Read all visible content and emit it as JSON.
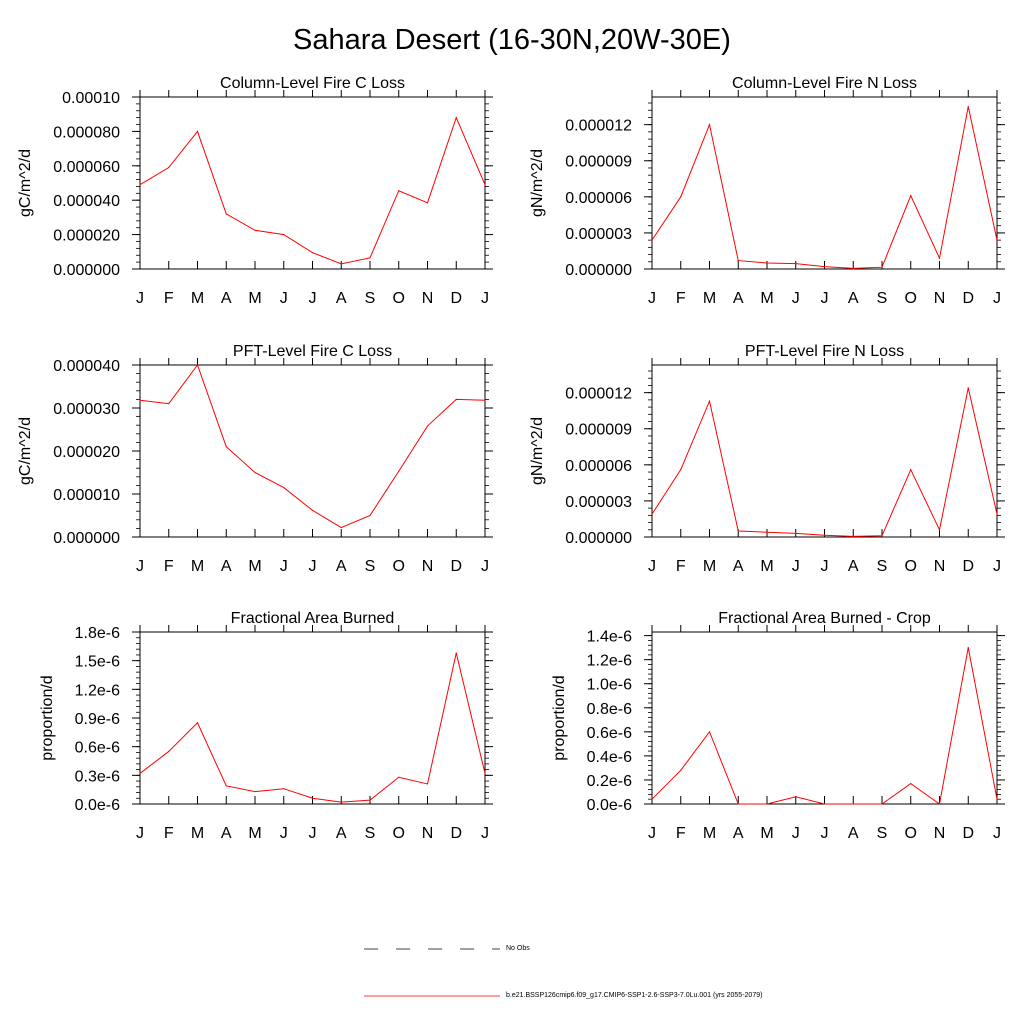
{
  "page": {
    "title": "Sahara Desert (16-30N,20W-30E)"
  },
  "colors": {
    "series": "#ff0000",
    "axis": "#000000",
    "background": "#ffffff"
  },
  "legend": {
    "obs_label": "No Obs",
    "model_label": "b.e21.BSSP126cmip6.f09_g17.CMIP6-SSP1-2.6-SSP3-7.0Lu.001 (yrs 2055-2079)"
  },
  "chart_data": [
    {
      "type": "line",
      "title": "Column-Level Fire C Loss",
      "xlabel": "",
      "ylabel": "gC/m^2/d",
      "categories": [
        "J",
        "F",
        "M",
        "A",
        "M",
        "J",
        "J",
        "A",
        "S",
        "O",
        "N",
        "D",
        "J"
      ],
      "ylim": [
        0,
        0.0001
      ],
      "yticks": [
        0,
        2e-05,
        4e-05,
        6e-05,
        8e-05,
        0.0001
      ],
      "ytick_labels": [
        "0.000000",
        "0.000020",
        "0.000040",
        "0.000060",
        "0.000080",
        "0.00010"
      ],
      "series": [
        {
          "values": [
            4.9e-05,
            5.9e-05,
            8e-05,
            3.2e-05,
            2.25e-05,
            2e-05,
            9.5e-06,
            3e-06,
            6.5e-06,
            4.55e-05,
            3.85e-05,
            8.8e-05,
            4.9e-05
          ]
        }
      ]
    },
    {
      "type": "line",
      "title": "Column-Level Fire N Loss",
      "xlabel": "",
      "ylabel": "gN/m^2/d",
      "categories": [
        "J",
        "F",
        "M",
        "A",
        "M",
        "J",
        "J",
        "A",
        "S",
        "O",
        "N",
        "D",
        "J"
      ],
      "ylim": [
        0,
        1.43e-05
      ],
      "yticks": [
        0,
        3e-06,
        6e-06,
        9e-06,
        1.2e-05
      ],
      "ytick_labels": [
        "0.000000",
        "0.000003",
        "0.000006",
        "0.000009",
        "0.000012"
      ],
      "series": [
        {
          "values": [
            2.4e-06,
            6e-06,
            1.2e-05,
            7e-07,
            5e-07,
            4.5e-07,
            2e-07,
            5e-08,
            1.5e-07,
            6.1e-06,
            9e-07,
            1.35e-05,
            2.4e-06
          ]
        }
      ]
    },
    {
      "type": "line",
      "title": "PFT-Level Fire C Loss",
      "xlabel": "",
      "ylabel": "gC/m^2/d",
      "categories": [
        "J",
        "F",
        "M",
        "A",
        "M",
        "J",
        "J",
        "A",
        "S",
        "O",
        "N",
        "D",
        "J"
      ],
      "ylim": [
        0,
        4e-05
      ],
      "yticks": [
        0,
        1e-05,
        2e-05,
        3e-05,
        4e-05
      ],
      "ytick_labels": [
        "0.000000",
        "0.000010",
        "0.000020",
        "0.000030",
        "0.000040"
      ],
      "series": [
        {
          "values": [
            3.18e-05,
            3.1e-05,
            4e-05,
            2.1e-05,
            1.5e-05,
            1.15e-05,
            6.2e-06,
            2.2e-06,
            5e-06,
            1.53e-05,
            2.58e-05,
            3.2e-05,
            3.18e-05
          ]
        }
      ]
    },
    {
      "type": "line",
      "title": "PFT-Level Fire N Loss",
      "xlabel": "",
      "ylabel": "gN/m^2/d",
      "categories": [
        "J",
        "F",
        "M",
        "A",
        "M",
        "J",
        "J",
        "A",
        "S",
        "O",
        "N",
        "D",
        "J"
      ],
      "ylim": [
        0,
        1.43e-05
      ],
      "yticks": [
        0,
        3e-06,
        6e-06,
        9e-06,
        1.2e-05
      ],
      "ytick_labels": [
        "0.000000",
        "0.000003",
        "0.000006",
        "0.000009",
        "0.000012"
      ],
      "series": [
        {
          "values": [
            1.9e-06,
            5.6e-06,
            1.13e-05,
            5e-07,
            4e-07,
            3e-07,
            1.5e-07,
            5e-08,
            1e-07,
            5.6e-06,
            6e-07,
            1.24e-05,
            1.9e-06
          ]
        }
      ]
    },
    {
      "type": "line",
      "title": "Fractional Area Burned",
      "xlabel": "",
      "ylabel": "proportion/d",
      "categories": [
        "J",
        "F",
        "M",
        "A",
        "M",
        "J",
        "J",
        "A",
        "S",
        "O",
        "N",
        "D",
        "J"
      ],
      "ylim": [
        0,
        1.8e-06
      ],
      "yticks": [
        0,
        3e-07,
        6e-07,
        9e-07,
        1.2e-06,
        1.5e-06,
        1.8e-06
      ],
      "ytick_labels": [
        "0.0e-6",
        "0.3e-6",
        "0.6e-6",
        "0.9e-6",
        "1.2e-6",
        "1.5e-6",
        "1.8e-6"
      ],
      "series": [
        {
          "values": [
            3.2e-07,
            5.5e-07,
            8.5e-07,
            1.9e-07,
            1.3e-07,
            1.6e-07,
            6e-08,
            2e-08,
            4e-08,
            2.8e-07,
            2.1e-07,
            1.58e-06,
            3.2e-07
          ]
        }
      ]
    },
    {
      "type": "line",
      "title": "Fractional Area Burned - Crop",
      "xlabel": "",
      "ylabel": "proportion/d",
      "categories": [
        "J",
        "F",
        "M",
        "A",
        "M",
        "J",
        "J",
        "A",
        "S",
        "O",
        "N",
        "D",
        "J"
      ],
      "ylim": [
        0,
        1.43e-06
      ],
      "yticks": [
        0,
        2e-07,
        4e-07,
        6e-07,
        8e-07,
        1e-06,
        1.2e-06,
        1.4e-06
      ],
      "ytick_labels": [
        "0.0e-6",
        "0.2e-6",
        "0.4e-6",
        "0.6e-6",
        "0.8e-6",
        "1.0e-6",
        "1.2e-6",
        "1.4e-6"
      ],
      "series": [
        {
          "values": [
            4e-08,
            2.8e-07,
            6e-07,
            0.0,
            0.0,
            6e-08,
            0.0,
            0.0,
            0.0,
            1.7e-07,
            0.0,
            1.3e-06,
            4e-08
          ]
        }
      ]
    }
  ]
}
